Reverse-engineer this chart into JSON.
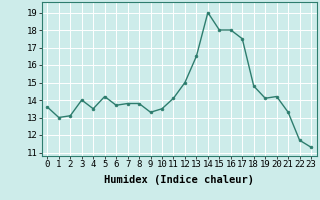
{
  "x": [
    0,
    1,
    2,
    3,
    4,
    5,
    6,
    7,
    8,
    9,
    10,
    11,
    12,
    13,
    14,
    15,
    16,
    17,
    18,
    19,
    20,
    21,
    22,
    23
  ],
  "y": [
    13.6,
    13.0,
    13.1,
    14.0,
    13.5,
    14.2,
    13.7,
    13.8,
    13.8,
    13.3,
    13.5,
    14.1,
    15.0,
    16.5,
    19.0,
    18.0,
    18.0,
    17.5,
    14.8,
    14.1,
    14.2,
    13.3,
    11.7,
    11.3
  ],
  "line_color": "#2e7d6e",
  "marker": "o",
  "marker_size": 2,
  "linewidth": 1.0,
  "xlabel": "Humidex (Indice chaleur)",
  "xlim": [
    -0.5,
    23.5
  ],
  "ylim": [
    10.8,
    19.6
  ],
  "yticks": [
    11,
    12,
    13,
    14,
    15,
    16,
    17,
    18,
    19
  ],
  "xticks": [
    0,
    1,
    2,
    3,
    4,
    5,
    6,
    7,
    8,
    9,
    10,
    11,
    12,
    13,
    14,
    15,
    16,
    17,
    18,
    19,
    20,
    21,
    22,
    23
  ],
  "bg_color": "#cdecea",
  "grid_color": "#ffffff",
  "tick_fontsize": 6.5,
  "xlabel_fontsize": 7.5,
  "spine_color": "#2e7d6e"
}
